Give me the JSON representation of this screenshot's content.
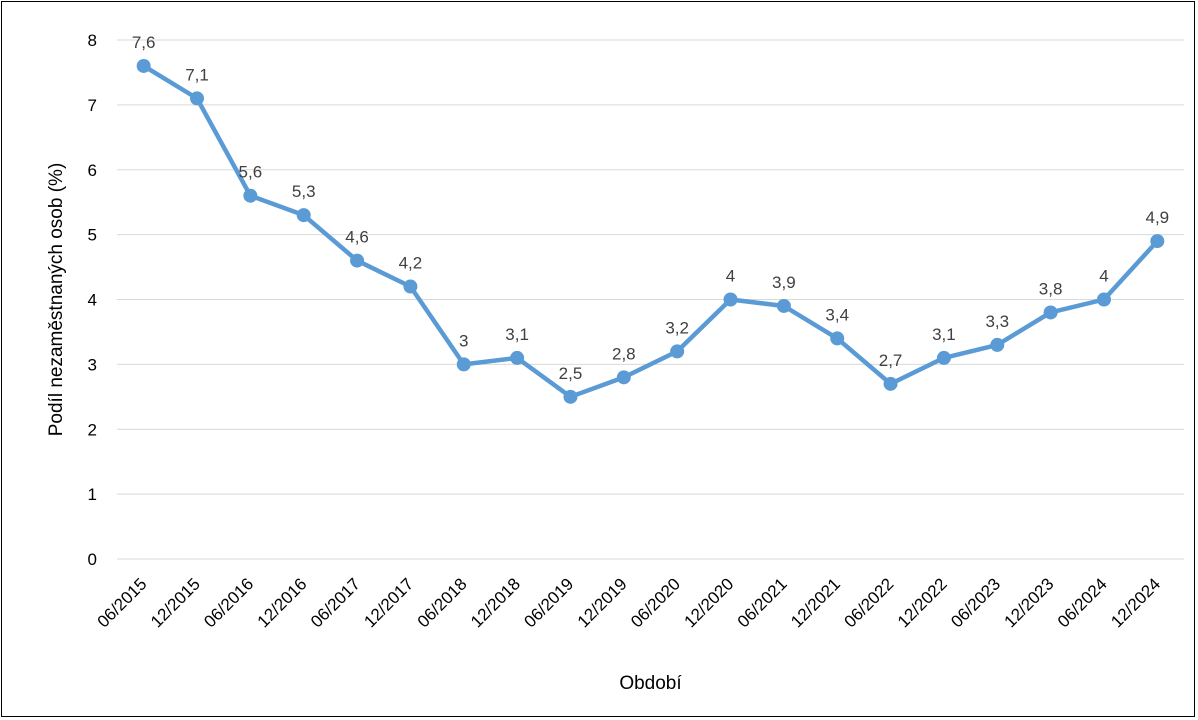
{
  "colors": {
    "series": "#5B9BD5",
    "grid": "#D9D9D9"
  },
  "chart_data": {
    "type": "line",
    "title": "",
    "xlabel": "Období",
    "ylabel": "Podíl nezaměstnaných osob (%)",
    "ylim": [
      0,
      8
    ],
    "yticks": [
      "0",
      "1",
      "2",
      "3",
      "4",
      "5",
      "6",
      "7",
      "8"
    ],
    "grid": true,
    "legend": "none",
    "categories": [
      "06/2015",
      "12/2015",
      "06/2016",
      "12/2016",
      "06/2017",
      "12/2017",
      "06/2018",
      "12/2018",
      "06/2019",
      "12/2019",
      "06/2020",
      "12/2020",
      "06/2021",
      "12/2021",
      "06/2022",
      "12/2022",
      "06/2023",
      "12/2023",
      "06/2024",
      "12/2024"
    ],
    "values": [
      7.6,
      7.1,
      5.6,
      5.3,
      4.6,
      4.2,
      3.0,
      3.1,
      2.5,
      2.8,
      3.2,
      4.0,
      3.9,
      3.4,
      2.7,
      3.1,
      3.3,
      3.8,
      4.0,
      4.9
    ],
    "data_labels": [
      "7,6",
      "7,1",
      "5,6",
      "5,3",
      "4,6",
      "4,2",
      "3",
      "3,1",
      "2,5",
      "2,8",
      "3,2",
      "4",
      "3,9",
      "3,4",
      "2,7",
      "3,1",
      "3,3",
      "3,8",
      "4",
      "4,9"
    ]
  }
}
